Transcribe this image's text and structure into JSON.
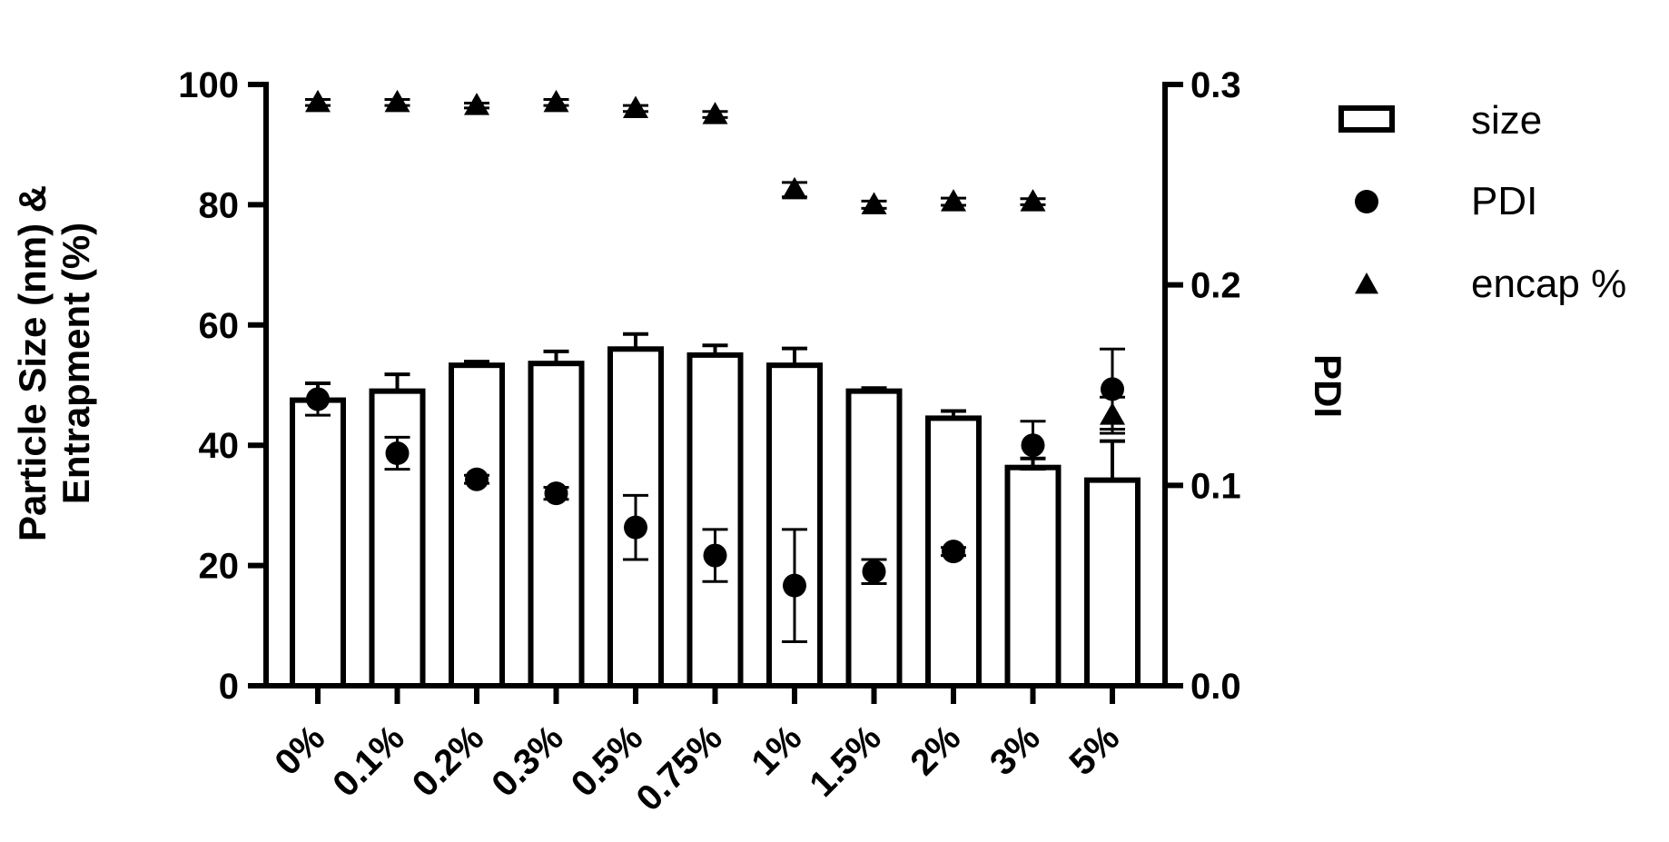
{
  "chart_data": {
    "type": "bar",
    "categories": [
      "0%",
      "0.1%",
      "0.2%",
      "0.3%",
      "0.5%",
      "0.75%",
      "1%",
      "1.5%",
      "2%",
      "3%",
      "5%"
    ],
    "left_axis": {
      "label_line1": "Particle  Size (nm) &",
      "label_line2": "Entrapment (%)",
      "ylim": [
        0,
        100
      ],
      "ticks": [
        "0",
        "20",
        "40",
        "60",
        "80",
        "100"
      ]
    },
    "right_axis": {
      "label": "PDI",
      "ylim": [
        0,
        0.3
      ],
      "ticks": [
        "0.0",
        "0.1",
        "0.2",
        "0.3"
      ]
    },
    "series": [
      {
        "name": "size",
        "kind": "bar",
        "axis": "left",
        "values": [
          47.5,
          49,
          53.3,
          53.6,
          56,
          55,
          53.3,
          49,
          44.5,
          36.3,
          34.2
        ],
        "errors": [
          2.8,
          2.8,
          0.6,
          2.0,
          2.5,
          1.6,
          2.8,
          0.5,
          1.2,
          1.5,
          6.5
        ]
      },
      {
        "name": "PDI",
        "kind": "scatter",
        "marker": "circle",
        "axis": "right",
        "values": [
          0.143,
          0.116,
          0.103,
          0.096,
          0.079,
          0.065,
          0.05,
          0.057,
          0.067,
          0.12,
          0.148
        ],
        "errors": [
          0.008,
          0.008,
          0.002,
          0.003,
          0.016,
          0.013,
          0.028,
          0.006,
          0.002,
          0.012,
          0.02
        ]
      },
      {
        "name": "encap %",
        "kind": "scatter",
        "marker": "triangle",
        "axis": "left",
        "values": [
          97,
          97,
          96.5,
          97,
          96,
          95,
          82.5,
          80,
          80.5,
          80.5,
          45
        ],
        "errors": [
          0.5,
          0.5,
          0.4,
          0.5,
          0.5,
          0.5,
          1.2,
          0.6,
          0.6,
          0.5,
          3
        ]
      }
    ],
    "legend": {
      "position": "right",
      "items": [
        "size",
        "PDI",
        "encap %"
      ]
    },
    "grid": false
  }
}
